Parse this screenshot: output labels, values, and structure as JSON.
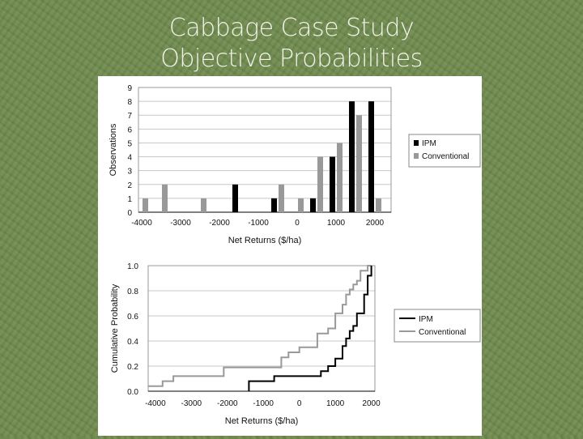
{
  "slide": {
    "title_line1": "Cabbage Case Study",
    "title_line2": "Objective Probabilities"
  },
  "chart_data": [
    {
      "type": "bar",
      "categories": [
        -4000,
        -3500,
        -3000,
        -2500,
        -2000,
        -1500,
        -1000,
        -500,
        0,
        500,
        1000,
        1500,
        2000
      ],
      "x_ticks": [
        "-4000",
        "-3000",
        "-2000",
        "-1000",
        "0",
        "1000",
        "2000"
      ],
      "xlabel": "Net Returns ($/ha)",
      "ylabel": "Observations",
      "ylim": [
        0,
        9
      ],
      "y_ticks": [
        "0",
        "1",
        "2",
        "3",
        "4",
        "5",
        "6",
        "7",
        "8",
        "9"
      ],
      "series": [
        {
          "name": "IPM",
          "color": "#000000",
          "values": [
            0,
            0,
            0,
            0,
            0,
            2,
            0,
            1,
            0,
            1,
            4,
            8,
            8
          ]
        },
        {
          "name": "Conventional",
          "color": "#999999",
          "values": [
            1,
            2,
            0,
            1,
            0,
            0,
            0,
            2,
            1,
            4,
            5,
            7,
            1
          ]
        }
      ],
      "legend": "right",
      "grid": "horizontal"
    },
    {
      "type": "line",
      "xlabel": "Net Returns ($/ha)",
      "ylabel": "Cumulative Probability",
      "xlim": [
        -4000,
        2000
      ],
      "ylim": [
        0,
        1
      ],
      "x_ticks": [
        "-4000",
        "-3000",
        "-2000",
        "-1000",
        "0",
        "1000",
        "2000"
      ],
      "y_ticks": [
        "0.0",
        "0.2",
        "0.4",
        "0.6",
        "0.8",
        "1.0"
      ],
      "series": [
        {
          "name": "IPM",
          "color": "#000000",
          "x": [
            -1400,
            -1400,
            -700,
            -700,
            600,
            600,
            800,
            800,
            1000,
            1000,
            1200,
            1200,
            1300,
            1300,
            1400,
            1400,
            1500,
            1500,
            1600,
            1600,
            1800,
            1800,
            1900,
            1900,
            2000,
            2000
          ],
          "y": [
            0,
            0.08,
            0.08,
            0.12,
            0.12,
            0.16,
            0.16,
            0.2,
            0.2,
            0.26,
            0.26,
            0.36,
            0.36,
            0.42,
            0.42,
            0.48,
            0.48,
            0.52,
            0.52,
            0.62,
            0.62,
            0.77,
            0.77,
            0.92,
            0.92,
            1.0
          ]
        },
        {
          "name": "Conventional",
          "color": "#999999",
          "x": [
            -4200,
            -3800,
            -3800,
            -3500,
            -3500,
            -2100,
            -2100,
            -500,
            -500,
            -300,
            -300,
            0,
            0,
            500,
            500,
            800,
            800,
            1000,
            1000,
            1200,
            1200,
            1300,
            1300,
            1400,
            1400,
            1500,
            1500,
            1600,
            1600,
            1700,
            1700,
            1900,
            1900,
            2000
          ],
          "y": [
            0.04,
            0.04,
            0.08,
            0.08,
            0.12,
            0.12,
            0.19,
            0.19,
            0.27,
            0.27,
            0.31,
            0.31,
            0.35,
            0.35,
            0.46,
            0.46,
            0.5,
            0.5,
            0.62,
            0.62,
            0.69,
            0.69,
            0.77,
            0.77,
            0.81,
            0.81,
            0.85,
            0.85,
            0.88,
            0.88,
            0.96,
            0.96,
            1.0,
            1.0
          ]
        }
      ],
      "legend": "right",
      "grid": "horizontal"
    }
  ]
}
